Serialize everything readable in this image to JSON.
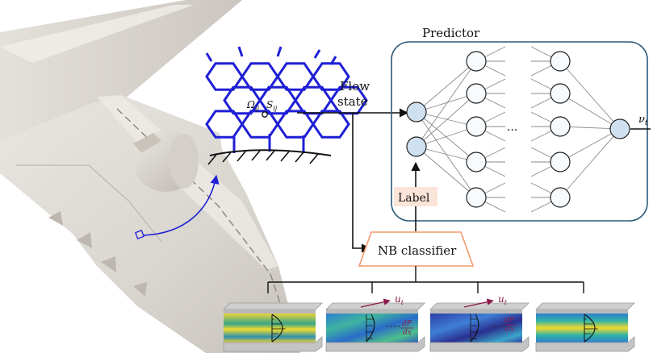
{
  "labels": {
    "flow_state_line1": "Flow",
    "flow_state_line2": "state",
    "predictor": "Predictor",
    "label": "Label",
    "nb_classifier": "NB classifier",
    "output": "ν",
    "output_sub": "t",
    "omega": "Ω",
    "omega_sub": "ij",
    "s": "S",
    "s_sub": "ij",
    "dots": "···",
    "ut": "u",
    "ut_sub": "t",
    "dpdx_num": "dP",
    "dpdx_den": "dx"
  },
  "network": {
    "input_nodes": 2,
    "hidden_layer_nodes": 5,
    "hidden_layers_shown": 2,
    "output_nodes": 1
  },
  "colors": {
    "mesh": "#1f1fd6",
    "arrow_blue": "#1f1fd6",
    "predictor_border": "#2d5a7b",
    "classifier_border": "#f29a6b",
    "label_bg": "#fbe4d8",
    "node_fill_input": "#cfe0f0",
    "node_fill_hidden": "#f7fbfd",
    "flow_arrow": "#8b1a4a"
  },
  "icons": [
    "aircraft-wing",
    "mesh-hexagon",
    "neural-network",
    "channel-flow"
  ]
}
